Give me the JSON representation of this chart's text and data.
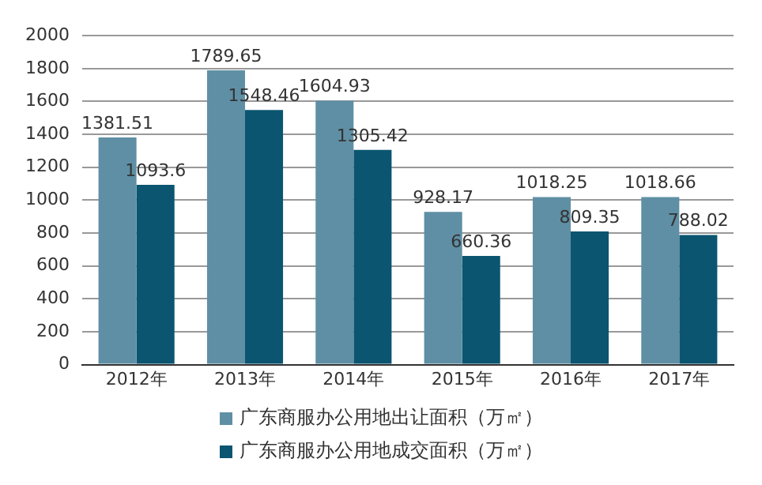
{
  "chart_data": {
    "type": "bar",
    "categories": [
      "2012年",
      "2013年",
      "2014年",
      "2015年",
      "2016年",
      "2017年"
    ],
    "series": [
      {
        "name": "广东商服办公用地出让面积（万㎡）",
        "color": "#5f8fa5",
        "values": [
          1381.51,
          1789.65,
          1604.93,
          928.17,
          1018.25,
          1018.66
        ]
      },
      {
        "name": "广东商服办公用地成交面积（万㎡）",
        "color": "#0b5570",
        "values": [
          1093.6,
          1548.46,
          1305.42,
          660.36,
          809.35,
          788.02
        ]
      }
    ],
    "ylim": [
      0,
      2000
    ],
    "yticks": [
      0,
      200,
      400,
      600,
      800,
      1000,
      1200,
      1400,
      1600,
      1800,
      2000
    ],
    "grid": "y",
    "legend": "bottom",
    "data_labels": true
  }
}
